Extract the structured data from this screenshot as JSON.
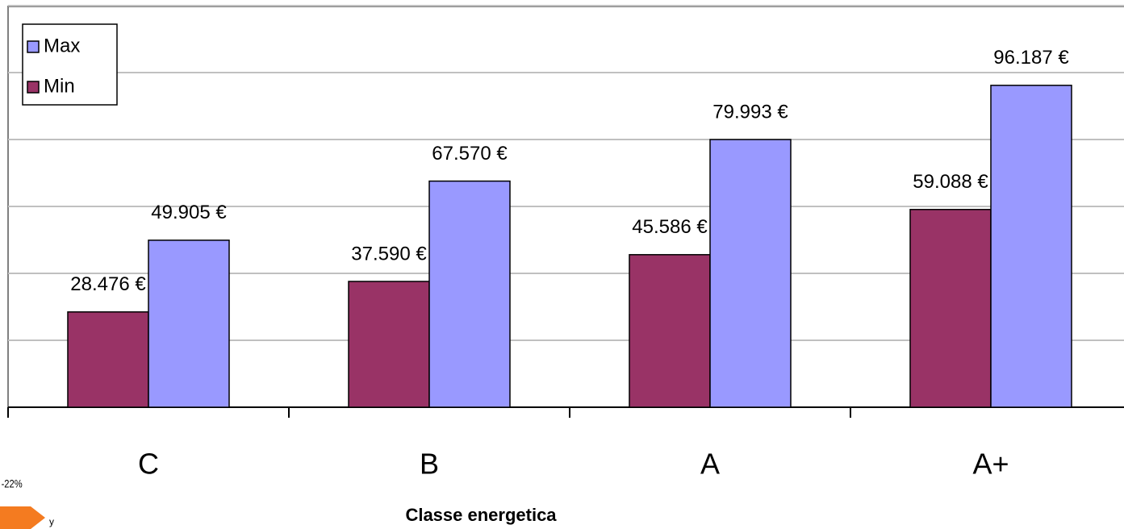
{
  "chart_data": {
    "type": "bar",
    "x_label": "Classe energetica",
    "categories": [
      "C",
      "B",
      "A",
      "A+"
    ],
    "series": [
      {
        "name": "Min",
        "color": "#993366",
        "values": [
          28476,
          37590,
          45586,
          59088
        ],
        "value_labels": [
          "28.476 €",
          "37.590 €",
          "45.586 €",
          "59.088 €"
        ]
      },
      {
        "name": "Max",
        "color": "#9999ff",
        "values": [
          49905,
          67570,
          79993,
          96187
        ],
        "value_labels": [
          "49.905 €",
          "67.570 €",
          "79.993 €",
          "96.187 €"
        ]
      }
    ],
    "ylim": [
      0,
      120000
    ],
    "yticks": [
      0,
      20000,
      40000,
      60000,
      80000,
      100000,
      120000
    ],
    "grid": true,
    "legend": "top-left",
    "annotations": [
      "-22%",
      "y"
    ]
  }
}
